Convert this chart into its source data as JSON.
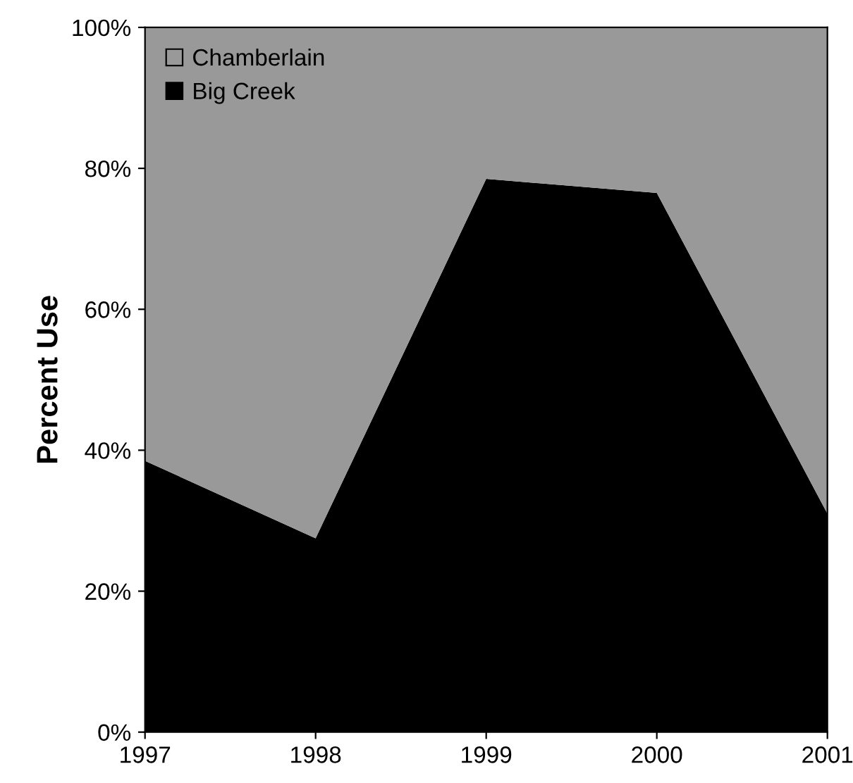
{
  "chart_data": {
    "type": "area",
    "stacked": true,
    "ylabel": "Percent Use",
    "x": [
      1997,
      1998,
      1999,
      2000,
      2001
    ],
    "series": [
      {
        "name": "Big Creek",
        "color": "#000000",
        "values": [
          38.5,
          27.5,
          78.5,
          76.5,
          31
        ]
      },
      {
        "name": "Chamberlain",
        "color": "#999999",
        "values": [
          61.5,
          72.5,
          21.5,
          23.5,
          69
        ]
      }
    ],
    "xlim": [
      1997,
      2001
    ],
    "xticks": [
      1997,
      1998,
      1999,
      2000,
      2001
    ],
    "ylim": [
      0,
      100
    ],
    "yticks": [
      {
        "value": 0,
        "label": "0%"
      },
      {
        "value": 20,
        "label": "20%"
      },
      {
        "value": 40,
        "label": "40%"
      },
      {
        "value": 60,
        "label": "60%"
      },
      {
        "value": 80,
        "label": "80%"
      },
      {
        "value": 100,
        "label": "100%"
      }
    ],
    "grid": false,
    "legend": "top left"
  }
}
